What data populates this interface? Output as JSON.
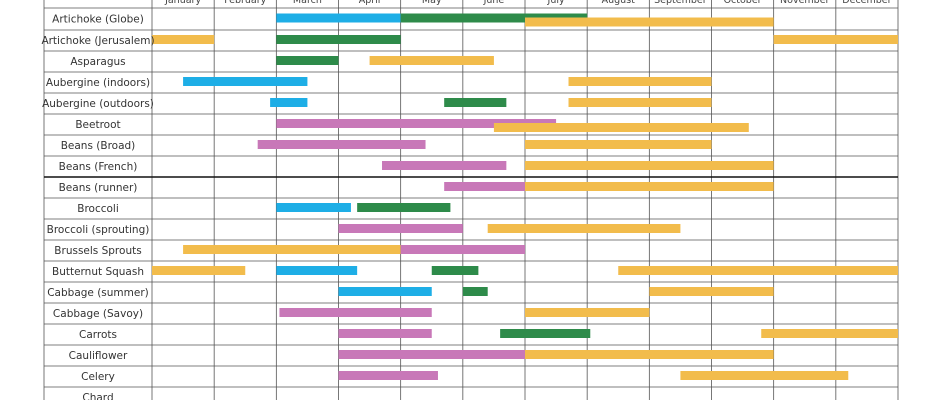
{
  "chart_data": {
    "type": "gantt",
    "title": "",
    "months": [
      "January",
      "February",
      "March",
      "April",
      "May",
      "June",
      "July",
      "August",
      "September",
      "October",
      "November",
      "December"
    ],
    "activity_colors": {
      "sow_indoors": "#1EAEE6",
      "plant_out": "#2E8B4A",
      "sow_outdoors": "#C878B8",
      "harvest": "#F2BC4C"
    },
    "crops": [
      {
        "name": "Artichoke (Globe)",
        "bars": [
          {
            "activity": "sow_indoors",
            "start": 3.0,
            "end": 5.0
          },
          {
            "activity": "plant_out",
            "start": 5.0,
            "end": 8.0
          },
          {
            "activity": "harvest",
            "start": 7.0,
            "end": 11.0
          }
        ]
      },
      {
        "name": "Artichoke (Jerusalem)",
        "bars": [
          {
            "activity": "harvest",
            "start": 1.0,
            "end": 2.0
          },
          {
            "activity": "plant_out",
            "start": 3.0,
            "end": 5.0
          },
          {
            "activity": "harvest",
            "start": 11.0,
            "end": 13.0
          }
        ]
      },
      {
        "name": "Asparagus",
        "bars": [
          {
            "activity": "plant_out",
            "start": 3.0,
            "end": 4.0
          },
          {
            "activity": "harvest",
            "start": 4.5,
            "end": 6.5
          }
        ]
      },
      {
        "name": "Aubergine (indoors)",
        "bars": [
          {
            "activity": "sow_indoors",
            "start": 1.5,
            "end": 3.5
          },
          {
            "activity": "harvest",
            "start": 7.7,
            "end": 10.0
          }
        ]
      },
      {
        "name": "Aubergine (outdoors)",
        "bars": [
          {
            "activity": "sow_indoors",
            "start": 2.9,
            "end": 3.5
          },
          {
            "activity": "plant_out",
            "start": 5.7,
            "end": 6.7
          },
          {
            "activity": "harvest",
            "start": 7.7,
            "end": 10.0
          }
        ]
      },
      {
        "name": "Beetroot",
        "bars": [
          {
            "activity": "sow_outdoors",
            "start": 3.0,
            "end": 7.5
          },
          {
            "activity": "harvest",
            "start": 6.5,
            "end": 10.6
          }
        ]
      },
      {
        "name": "Beans (Broad)",
        "bars": [
          {
            "activity": "sow_outdoors",
            "start": 2.7,
            "end": 5.4
          },
          {
            "activity": "harvest",
            "start": 7.0,
            "end": 10.0
          }
        ]
      },
      {
        "name": "Beans (French)",
        "bars": [
          {
            "activity": "sow_outdoors",
            "start": 4.7,
            "end": 6.7
          },
          {
            "activity": "harvest",
            "start": 7.0,
            "end": 11.0
          }
        ]
      },
      {
        "name": "Beans (runner)",
        "bars": [
          {
            "activity": "sow_outdoors",
            "start": 5.7,
            "end": 7.0
          },
          {
            "activity": "harvest",
            "start": 7.0,
            "end": 11.0
          }
        ]
      },
      {
        "name": "Broccoli",
        "bars": [
          {
            "activity": "sow_indoors",
            "start": 3.0,
            "end": 4.2
          },
          {
            "activity": "plant_out",
            "start": 4.3,
            "end": 5.8
          }
        ]
      },
      {
        "name": "Broccoli (sprouting)",
        "bars": [
          {
            "activity": "sow_outdoors",
            "start": 4.0,
            "end": 6.0
          },
          {
            "activity": "harvest",
            "start": 6.4,
            "end": 9.5
          }
        ]
      },
      {
        "name": "Brussels Sprouts",
        "bars": [
          {
            "activity": "harvest",
            "start": 1.5,
            "end": 5.0
          },
          {
            "activity": "sow_outdoors",
            "start": 5.0,
            "end": 7.0
          }
        ]
      },
      {
        "name": "Butternut Squash",
        "bars": [
          {
            "activity": "harvest",
            "start": 1.0,
            "end": 2.5
          },
          {
            "activity": "sow_indoors",
            "start": 3.0,
            "end": 4.3
          },
          {
            "activity": "plant_out",
            "start": 5.5,
            "end": 6.25
          },
          {
            "activity": "harvest",
            "start": 8.5,
            "end": 13.0
          }
        ]
      },
      {
        "name": "Cabbage (summer)",
        "bars": [
          {
            "activity": "sow_indoors",
            "start": 4.0,
            "end": 5.5
          },
          {
            "activity": "plant_out",
            "start": 6.0,
            "end": 6.4
          },
          {
            "activity": "harvest",
            "start": 9.0,
            "end": 11.0
          }
        ]
      },
      {
        "name": "Cabbage (Savoy)",
        "bars": [
          {
            "activity": "sow_outdoors",
            "start": 3.05,
            "end": 5.5
          },
          {
            "activity": "harvest",
            "start": 7.0,
            "end": 9.0
          }
        ]
      },
      {
        "name": "Carrots",
        "bars": [
          {
            "activity": "sow_outdoors",
            "start": 4.0,
            "end": 5.5
          },
          {
            "activity": "plant_out",
            "start": 6.6,
            "end": 8.05
          },
          {
            "activity": "harvest",
            "start": 10.8,
            "end": 13.0
          }
        ]
      },
      {
        "name": "Cauliflower",
        "bars": [
          {
            "activity": "sow_outdoors",
            "start": 4.0,
            "end": 7.0
          },
          {
            "activity": "harvest",
            "start": 7.0,
            "end": 11.0
          }
        ]
      },
      {
        "name": "Celery",
        "bars": [
          {
            "activity": "sow_outdoors",
            "start": 4.0,
            "end": 5.6
          },
          {
            "activity": "harvest",
            "start": 9.5,
            "end": 12.2
          }
        ]
      },
      {
        "name": "Chard",
        "bars": []
      }
    ]
  }
}
